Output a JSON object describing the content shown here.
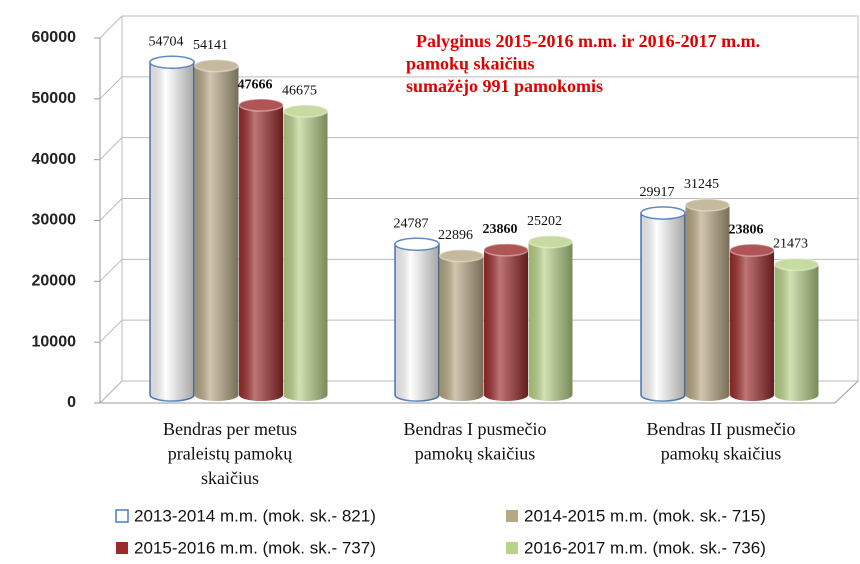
{
  "chart_data": {
    "type": "bar3d",
    "annotation": [
      "Palyginus 2015-2016 m.m. ir 2016-2017 m.m.",
      "pamokų skaičius",
      "sumažėjo 991 pamokomis"
    ],
    "categories": [
      [
        "Bendras per metus",
        "praleistų pamokų",
        "skaičius"
      ],
      [
        "Bendras I pusmečio",
        "pamokų skaičius"
      ],
      [
        "Bendras II pusmečio",
        "pamokų skaičius"
      ]
    ],
    "series": [
      {
        "name": "2013-2014 m.m. (mok. sk.- 821)",
        "color": "#ffffff",
        "stroke": "#4a7ebb",
        "values": [
          54704,
          24787,
          29917
        ]
      },
      {
        "name": "2014-2015 m.m. (mok. sk.- 715)",
        "color": "#b8a986",
        "values": [
          54141,
          22896,
          31245
        ]
      },
      {
        "name": "2015-2016 m.m. (mok. sk.- 737)",
        "color": "#9c2b2b",
        "label_bold": true,
        "values": [
          47666,
          23860,
          23806
        ]
      },
      {
        "name": "2016-2017 m.m. (mok. sk.- 736)",
        "color": "#b9d38a",
        "values": [
          46675,
          25202,
          21473
        ]
      }
    ],
    "ylim": [
      0,
      60000
    ],
    "yticks": [
      0,
      10000,
      20000,
      30000,
      40000,
      50000,
      60000
    ],
    "grid": true
  }
}
